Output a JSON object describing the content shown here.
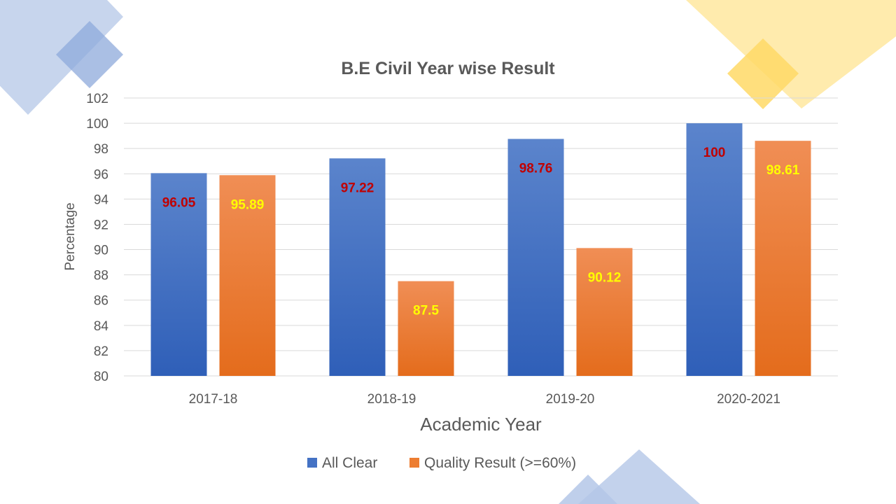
{
  "colors": {
    "series_all_clear": "#4472C4",
    "series_quality": "#ED7D31",
    "label_all_clear": "#C00000",
    "label_quality": "#FFFF00",
    "deco_blue": "#B4C7E7",
    "deco_yellow": "#FFE699",
    "grid": "#D9D9D9",
    "text": "#595959"
  },
  "chart_data": {
    "type": "bar",
    "title": "B.E Civil Year wise Result",
    "xlabel": "Academic Year",
    "ylabel": "Percentage",
    "categories": [
      "2017-18",
      "2018-19",
      "2019-20",
      "2020-2021"
    ],
    "ylim": [
      80,
      102
    ],
    "yticks": [
      80,
      82,
      84,
      86,
      88,
      90,
      92,
      94,
      96,
      98,
      100,
      102
    ],
    "ytick_labels": [
      "80",
      "82",
      "84",
      "86",
      "88",
      "90",
      "92",
      "94",
      "96",
      "98",
      "100",
      "102"
    ],
    "grid": true,
    "legend_position": "bottom",
    "series": [
      {
        "name": "All Clear",
        "values": [
          96.05,
          97.22,
          98.76,
          100
        ],
        "data_labels": [
          "96.05",
          "97.22",
          "98.76",
          "100"
        ]
      },
      {
        "name": "Quality Result (>=60%)",
        "values": [
          95.89,
          87.5,
          90.12,
          98.61
        ],
        "data_labels": [
          "95.89",
          "87.5",
          "90.12",
          "98.61"
        ]
      }
    ]
  }
}
